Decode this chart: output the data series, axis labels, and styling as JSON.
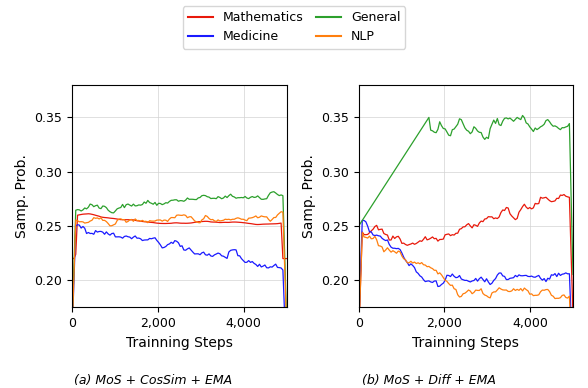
{
  "title_left": "(a) MoS + CosSim + EMA",
  "title_right": "(b) MoS + Diff + EMA",
  "xlabel": "Trainning Steps",
  "ylabel": "Samp. Prob.",
  "ylim": [
    0.175,
    0.38
  ],
  "xlim": [
    0,
    5000
  ],
  "xticks": [
    0,
    2000,
    4000
  ],
  "yticks": [
    0.2,
    0.25,
    0.3,
    0.35
  ],
  "colors": {
    "Mathematics": "#e8190b",
    "Medicine": "#1a1aff",
    "General": "#2ca02c",
    "NLP": "#ff7f0e"
  },
  "legend_labels": [
    "Mathematics",
    "Medicine",
    "General",
    "NLP"
  ],
  "n_steps": 120,
  "seed": 42
}
